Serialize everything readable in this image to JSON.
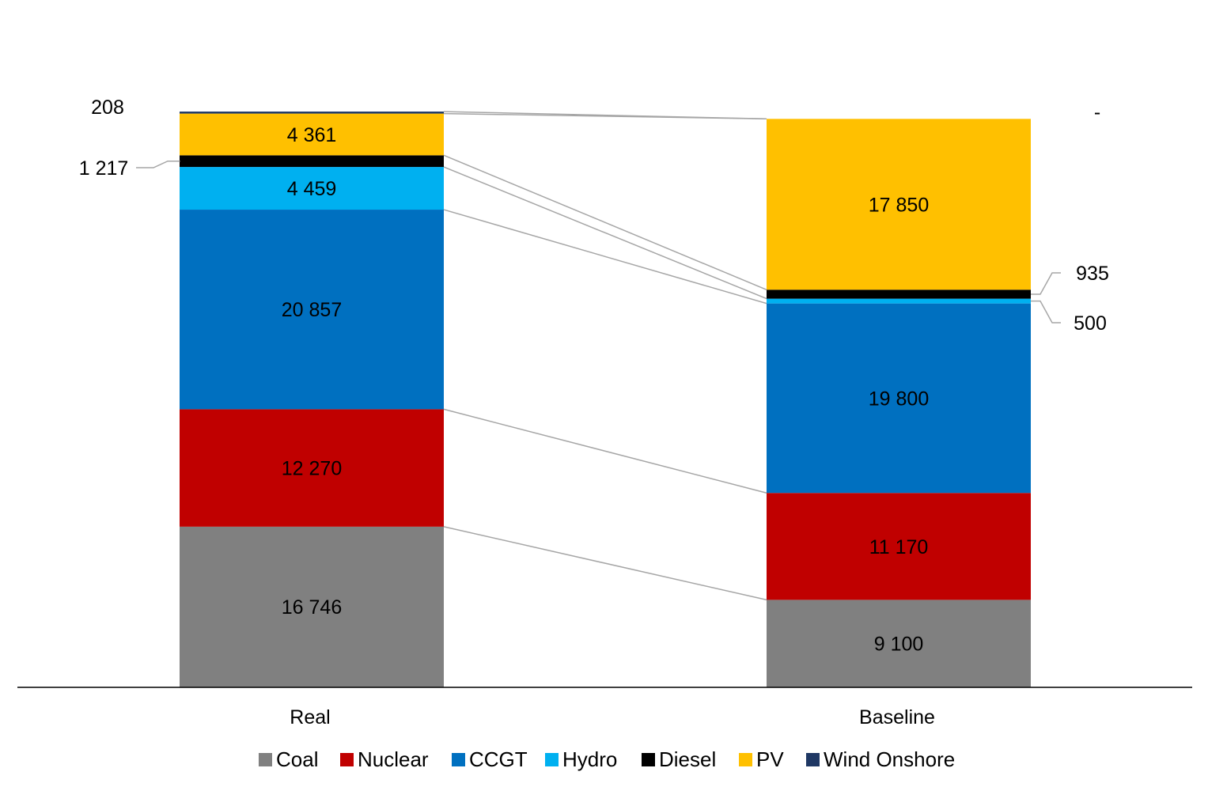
{
  "chart_data": {
    "type": "bar",
    "stacked": true,
    "categories": [
      "Real",
      "Baseline"
    ],
    "series": [
      {
        "name": "Coal",
        "color": "#808080",
        "values": [
          16746,
          9100
        ],
        "labels": [
          "16 746",
          "9 100"
        ]
      },
      {
        "name": "Nuclear",
        "color": "#C00000",
        "values": [
          12270,
          11170
        ],
        "labels": [
          "12 270",
          "11 170"
        ]
      },
      {
        "name": "CCGT",
        "color": "#0070C0",
        "values": [
          20857,
          19800
        ],
        "labels": [
          "20 857",
          "19 800"
        ]
      },
      {
        "name": "Hydro",
        "color": "#00B0F0",
        "values": [
          4459,
          500
        ],
        "labels": [
          "4 459",
          "500"
        ]
      },
      {
        "name": "Diesel",
        "color": "#000000",
        "values": [
          1217,
          935
        ],
        "labels": [
          "1 217",
          "935"
        ]
      },
      {
        "name": "PV",
        "color": "#FFC000",
        "values": [
          4361,
          17850
        ],
        "labels": [
          "4 361",
          "17 850"
        ]
      },
      {
        "name": "Wind Onshore",
        "color": "#1F3864",
        "values": [
          208,
          0
        ],
        "labels": [
          "208",
          "-"
        ]
      }
    ],
    "ylim": [
      0,
      60000
    ],
    "grid": false,
    "legend_position": "bottom",
    "series_connector_lines": true
  }
}
